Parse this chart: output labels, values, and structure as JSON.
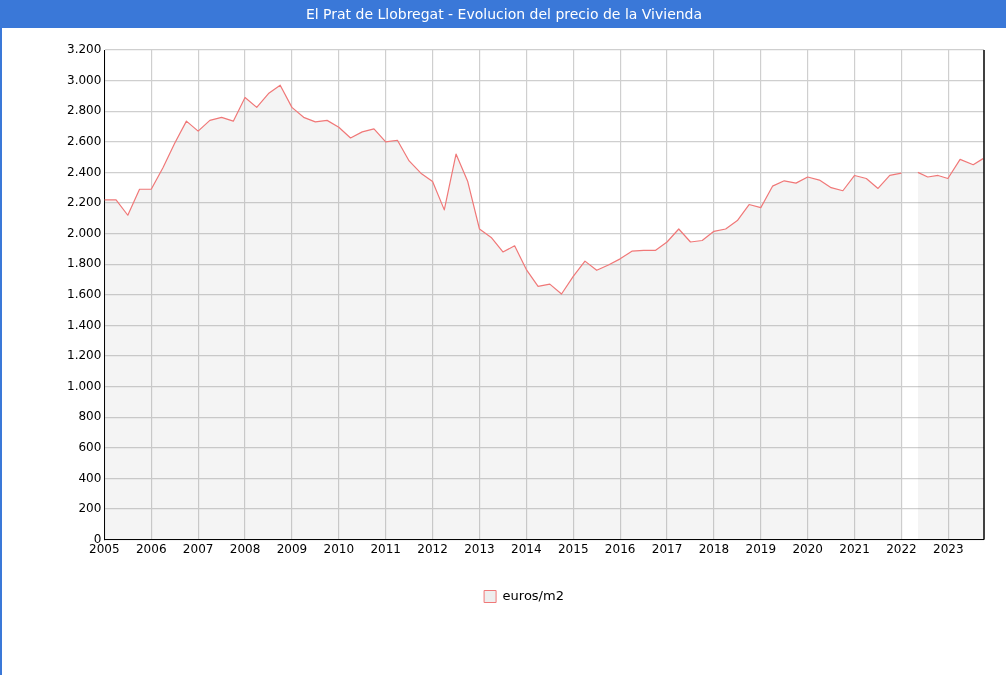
{
  "chart_data": {
    "type": "area",
    "title": "El Prat de Llobregat - Evolucion del precio de la Vivienda",
    "x": [
      2005,
      2005.25,
      2005.5,
      2005.75,
      2006,
      2006.25,
      2006.5,
      2006.75,
      2007,
      2007.25,
      2007.5,
      2007.75,
      2008,
      2008.25,
      2008.5,
      2008.75,
      2009,
      2009.25,
      2009.5,
      2009.75,
      2010,
      2010.25,
      2010.5,
      2010.75,
      2011,
      2011.25,
      2011.5,
      2011.75,
      2012,
      2012.25,
      2012.5,
      2012.75,
      2013,
      2013.25,
      2013.5,
      2013.75,
      2014,
      2014.25,
      2014.5,
      2014.75,
      2015,
      2015.25,
      2015.5,
      2015.75,
      2016,
      2016.25,
      2016.5,
      2016.75,
      2017,
      2017.25,
      2017.5,
      2017.75,
      2018,
      2018.25,
      2018.5,
      2018.75,
      2019,
      2019.25,
      2019.5,
      2019.75,
      2020,
      2020.25,
      2020.5,
      2020.75,
      2021,
      2021.25,
      2021.5,
      2021.75,
      2022,
      2022.2,
      2022.35,
      2022.56,
      2022.78,
      2022.99,
      2023.25,
      2023.53,
      2023.74
    ],
    "series": [
      {
        "name": "euros/m2",
        "color": "#f07878",
        "values": [
          2220,
          2220,
          2120,
          2290,
          2290,
          2430,
          2590,
          2735,
          2670,
          2740,
          2760,
          2735,
          2890,
          2825,
          2915,
          2970,
          2825,
          2760,
          2730,
          2740,
          2695,
          2625,
          2665,
          2685,
          2600,
          2610,
          2475,
          2395,
          2340,
          2155,
          2520,
          2340,
          2030,
          1975,
          1880,
          1920,
          1765,
          1655,
          1670,
          1605,
          1720,
          1820,
          1760,
          1795,
          1835,
          1885,
          1890,
          1890,
          1945,
          2030,
          1945,
          1955,
          2015,
          2030,
          2085,
          2190,
          2170,
          2310,
          2345,
          2330,
          2370,
          2350,
          2300,
          2280,
          2380,
          2360,
          2295,
          2380,
          2395,
          null,
          2400,
          2370,
          2380,
          2360,
          2485,
          2450,
          2490
        ]
      }
    ],
    "xlim": [
      2005,
      2023.76
    ],
    "xticks": [
      2005,
      2006,
      2007,
      2008,
      2009,
      2010,
      2011,
      2012,
      2013,
      2014,
      2015,
      2016,
      2017,
      2018,
      2019,
      2020,
      2021,
      2022,
      2023
    ],
    "ylim": [
      0,
      3200
    ],
    "yticks": [
      0,
      200,
      400,
      600,
      800,
      {
        "value": 1000,
        "label": "1.000"
      },
      {
        "value": 1200,
        "label": "1.200"
      },
      {
        "value": 1400,
        "label": "1.400"
      },
      {
        "value": 1600,
        "label": "1.600"
      },
      {
        "value": 1800,
        "label": "1.800"
      },
      {
        "value": 2000,
        "label": "2.000"
      },
      {
        "value": 2200,
        "label": "2.200"
      },
      {
        "value": 2400,
        "label": "2.400"
      },
      {
        "value": 2600,
        "label": "2.600"
      },
      {
        "value": 2800,
        "label": "2.800"
      },
      {
        "value": 3000,
        "label": "3.000"
      },
      {
        "value": 3200,
        "label": "3.200"
      }
    ],
    "grid": true,
    "legend": "bottom"
  }
}
